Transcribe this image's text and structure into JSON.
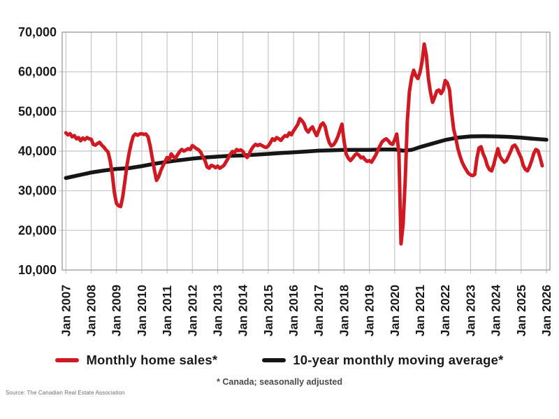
{
  "chart_data": {
    "type": "line",
    "title": "",
    "x_axis": {
      "tick_labels": [
        "Jan 2007",
        "Jan 2008",
        "Jan 2009",
        "Jan 2010",
        "Jan 2011",
        "Jan 2012",
        "Jan 2013",
        "Jan 2014",
        "Jan 2015",
        "Jan 2016",
        "Jan 2017",
        "Jan 2018",
        "Jan 2019",
        "Jan 2020",
        "Jan 2021",
        "Jan 2022",
        "Jan 2023",
        "Jan 2024",
        "Jan 2025",
        "Jan 2026"
      ],
      "start": "Jan 2007",
      "end": "Jan 2026"
    },
    "y_axis": {
      "min": 10000,
      "max": 70000,
      "tick_step": 10000,
      "tick_labels": [
        "70,000",
        "60,000",
        "50,000",
        "40,000",
        "30,000",
        "20,000",
        "10,000"
      ]
    },
    "grid": true,
    "legend_position": "bottom",
    "series": [
      {
        "name": "Monthly home sales*",
        "color": "#d01a23",
        "start": "2007-01",
        "frequency": "monthly",
        "values": [
          44600,
          44100,
          44400,
          43600,
          43900,
          43100,
          43400,
          42600,
          43300,
          42900,
          43400,
          43100,
          43000,
          41700,
          41500,
          41900,
          42200,
          41500,
          41000,
          40300,
          39800,
          37600,
          34200,
          29500,
          26800,
          26200,
          26000,
          28500,
          32500,
          36500,
          39500,
          42000,
          43800,
          44300,
          44000,
          44300,
          44400,
          44200,
          44300,
          43600,
          41300,
          38200,
          35200,
          32600,
          33500,
          35000,
          36200,
          37300,
          38400,
          37800,
          39300,
          38600,
          38200,
          39100,
          39900,
          40400,
          40000,
          40300,
          40600,
          40400,
          41400,
          41000,
          40600,
          40300,
          39700,
          38500,
          37600,
          36000,
          35700,
          36400,
          36200,
          35800,
          36200,
          35700,
          36000,
          36400,
          37300,
          38200,
          39200,
          39900,
          39600,
          40400,
          40100,
          40300,
          39900,
          38900,
          38400,
          39300,
          40400,
          41200,
          41700,
          41400,
          41700,
          41400,
          41100,
          40900,
          41300,
          42100,
          43100,
          42700,
          43400,
          43100,
          42700,
          43400,
          43900,
          43700,
          44600,
          44100,
          45100,
          45900,
          46700,
          48200,
          47700,
          46900,
          45400,
          44800,
          45600,
          46100,
          44900,
          43900,
          45200,
          46600,
          47100,
          46200,
          43800,
          42100,
          41300,
          41600,
          42400,
          43600,
          45200,
          46800,
          42500,
          39200,
          38200,
          37600,
          38200,
          38900,
          39400,
          39000,
          38300,
          38500,
          37800,
          37400,
          37600,
          37200,
          38100,
          39000,
          40200,
          41300,
          42300,
          42800,
          43100,
          42600,
          41900,
          41700,
          42800,
          44300,
          39500,
          16600,
          21500,
          32500,
          47500,
          55000,
          58500,
          60400,
          59000,
          58300,
          59800,
          62500,
          67000,
          64200,
          58300,
          54800,
          52300,
          53600,
          55200,
          55400,
          54500,
          55400,
          57800,
          57200,
          55500,
          49800,
          45500,
          43300,
          40600,
          38800,
          37200,
          36100,
          35200,
          34400,
          34000,
          33800,
          34100,
          38200,
          40800,
          41100,
          39300,
          38100,
          36300,
          35300,
          35000,
          36600,
          38700,
          40600,
          38600,
          37800,
          37200,
          37600,
          38700,
          39900,
          41200,
          41500,
          40700,
          39400,
          38300,
          36400,
          35400,
          35000,
          36100,
          37600,
          39400,
          40400,
          40100,
          38300,
          36300
        ]
      },
      {
        "name": "10-year monthly moving average*",
        "color": "#161616",
        "start": "2007-01",
        "frequency": "monthly-anchors",
        "anchors": [
          [
            0,
            33200
          ],
          [
            6,
            33900
          ],
          [
            12,
            34600
          ],
          [
            18,
            35100
          ],
          [
            24,
            35500
          ],
          [
            30,
            35700
          ],
          [
            36,
            36200
          ],
          [
            42,
            36800
          ],
          [
            48,
            37300
          ],
          [
            54,
            37700
          ],
          [
            60,
            38100
          ],
          [
            66,
            38400
          ],
          [
            72,
            38600
          ],
          [
            78,
            38800
          ],
          [
            84,
            38900
          ],
          [
            90,
            39100
          ],
          [
            96,
            39300
          ],
          [
            102,
            39500
          ],
          [
            108,
            39700
          ],
          [
            114,
            39900
          ],
          [
            120,
            40100
          ],
          [
            126,
            40200
          ],
          [
            132,
            40300
          ],
          [
            138,
            40300
          ],
          [
            144,
            40300
          ],
          [
            150,
            40400
          ],
          [
            156,
            40400
          ],
          [
            160,
            40100
          ],
          [
            164,
            40300
          ],
          [
            168,
            41000
          ],
          [
            174,
            41900
          ],
          [
            180,
            42800
          ],
          [
            186,
            43400
          ],
          [
            192,
            43700
          ],
          [
            198,
            43750
          ],
          [
            204,
            43700
          ],
          [
            210,
            43600
          ],
          [
            216,
            43400
          ],
          [
            222,
            43100
          ],
          [
            228,
            42850
          ]
        ]
      }
    ],
    "style": {
      "grid_color": "#c6c6c6",
      "border_color": "#999999",
      "axis_label_color": "#1a1a1a"
    },
    "footnote": "* Canada; seasonally adjusted",
    "source": "Source: The Canadian Real Estate Association"
  },
  "legend": {
    "items": [
      {
        "label": "Monthly home sales*",
        "color": "#d01a23"
      },
      {
        "label": "10-year monthly moving average*",
        "color": "#161616"
      }
    ]
  }
}
